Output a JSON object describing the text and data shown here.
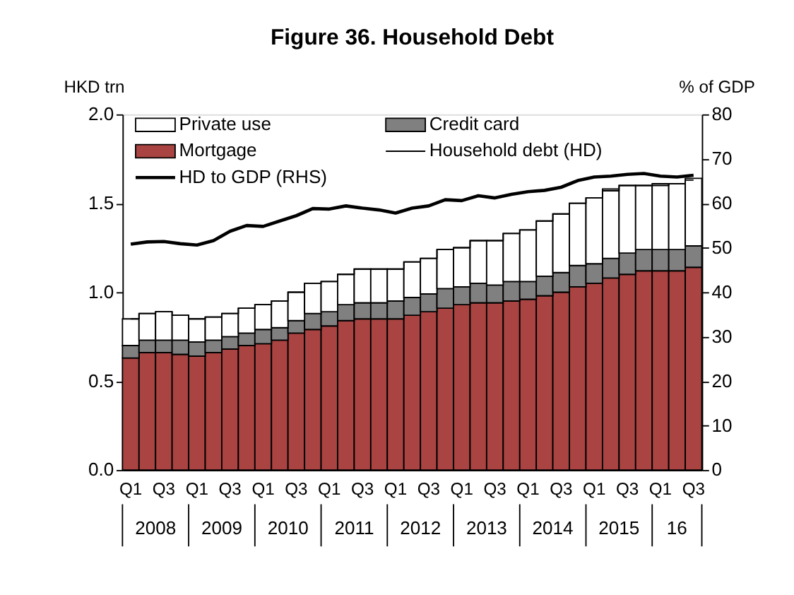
{
  "chart_data": {
    "type": "bar",
    "title": "Figure 36. Household Debt",
    "ylabel": "HKD trn",
    "y2label": "% of GDP",
    "categories": [
      "Q1",
      null,
      "Q3",
      null,
      "Q1",
      null,
      "Q3",
      null,
      "Q1",
      null,
      "Q3",
      null,
      "Q1",
      null,
      "Q3",
      null,
      "Q1",
      null,
      "Q3",
      null,
      "Q1",
      null,
      "Q3",
      null,
      "Q1",
      null,
      "Q3",
      null,
      "Q1",
      null,
      "Q3",
      null,
      "Q1",
      null,
      "Q3"
    ],
    "annotations": [
      "2008",
      "2009",
      "2010",
      "2011",
      "2012",
      "2013",
      "2014",
      "2015",
      "16"
    ],
    "stacked": true,
    "series": [
      {
        "name": "Mortgage",
        "type": "bar",
        "color": "#a94442",
        "values": [
          0.63,
          0.66,
          0.66,
          0.65,
          0.64,
          0.66,
          0.68,
          0.7,
          0.71,
          0.73,
          0.77,
          0.79,
          0.81,
          0.84,
          0.85,
          0.85,
          0.85,
          0.87,
          0.89,
          0.91,
          0.93,
          0.94,
          0.94,
          0.95,
          0.96,
          0.98,
          1.0,
          1.03,
          1.05,
          1.08,
          1.1,
          1.12,
          1.12,
          1.12,
          1.14
        ]
      },
      {
        "name": "Credit card",
        "type": "bar",
        "color": "#808080",
        "values": [
          0.07,
          0.07,
          0.07,
          0.08,
          0.08,
          0.07,
          0.07,
          0.07,
          0.08,
          0.07,
          0.07,
          0.09,
          0.08,
          0.09,
          0.09,
          0.09,
          0.1,
          0.1,
          0.1,
          0.11,
          0.1,
          0.11,
          0.1,
          0.11,
          0.1,
          0.11,
          0.11,
          0.12,
          0.11,
          0.11,
          0.12,
          0.12,
          0.12,
          0.12,
          0.12
        ]
      },
      {
        "name": "Private use",
        "type": "bar",
        "color": "#ffffff",
        "values": [
          0.15,
          0.15,
          0.16,
          0.14,
          0.13,
          0.13,
          0.13,
          0.14,
          0.14,
          0.15,
          0.16,
          0.17,
          0.17,
          0.17,
          0.19,
          0.19,
          0.18,
          0.2,
          0.2,
          0.22,
          0.22,
          0.24,
          0.25,
          0.27,
          0.29,
          0.31,
          0.33,
          0.35,
          0.37,
          0.39,
          0.38,
          0.36,
          0.37,
          0.37,
          0.38
        ]
      },
      {
        "name": "Household debt (HD)",
        "type": "step",
        "color": "#000000",
        "values": [
          0.85,
          0.88,
          0.89,
          0.87,
          0.85,
          0.86,
          0.88,
          0.91,
          0.93,
          0.95,
          1.0,
          1.05,
          1.06,
          1.1,
          1.13,
          1.13,
          1.13,
          1.17,
          1.19,
          1.24,
          1.25,
          1.29,
          1.29,
          1.33,
          1.35,
          1.4,
          1.44,
          1.5,
          1.53,
          1.57,
          1.6,
          1.6,
          1.6,
          1.61,
          1.63
        ]
      },
      {
        "name": "HD to GDP (RHS)",
        "type": "line",
        "axis": "y2",
        "color": "#000000",
        "values": [
          50.8,
          51.3,
          51.4,
          50.9,
          50.6,
          51.6,
          53.7,
          55.0,
          54.8,
          56.0,
          57.2,
          58.8,
          58.7,
          59.4,
          58.9,
          58.5,
          57.8,
          58.9,
          59.4,
          60.8,
          60.6,
          61.7,
          61.2,
          62.0,
          62.6,
          62.9,
          63.6,
          65.1,
          65.9,
          66.1,
          66.5,
          66.7,
          66.1,
          65.9,
          66.3
        ]
      }
    ],
    "ylim": [
      0,
      2.0
    ],
    "yticks": [
      {
        "value": 0,
        "label": "0.0"
      },
      {
        "value": 0.5,
        "label": "0.5"
      },
      {
        "value": 1.0,
        "label": "1.0"
      },
      {
        "value": 1.5,
        "label": "1.5"
      },
      {
        "value": 2.0,
        "label": "2.0"
      }
    ],
    "y2lim": [
      0,
      80
    ],
    "y2ticks": [
      0,
      10,
      20,
      30,
      40,
      50,
      60,
      70,
      80
    ],
    "legend": "top left",
    "grid": false
  }
}
